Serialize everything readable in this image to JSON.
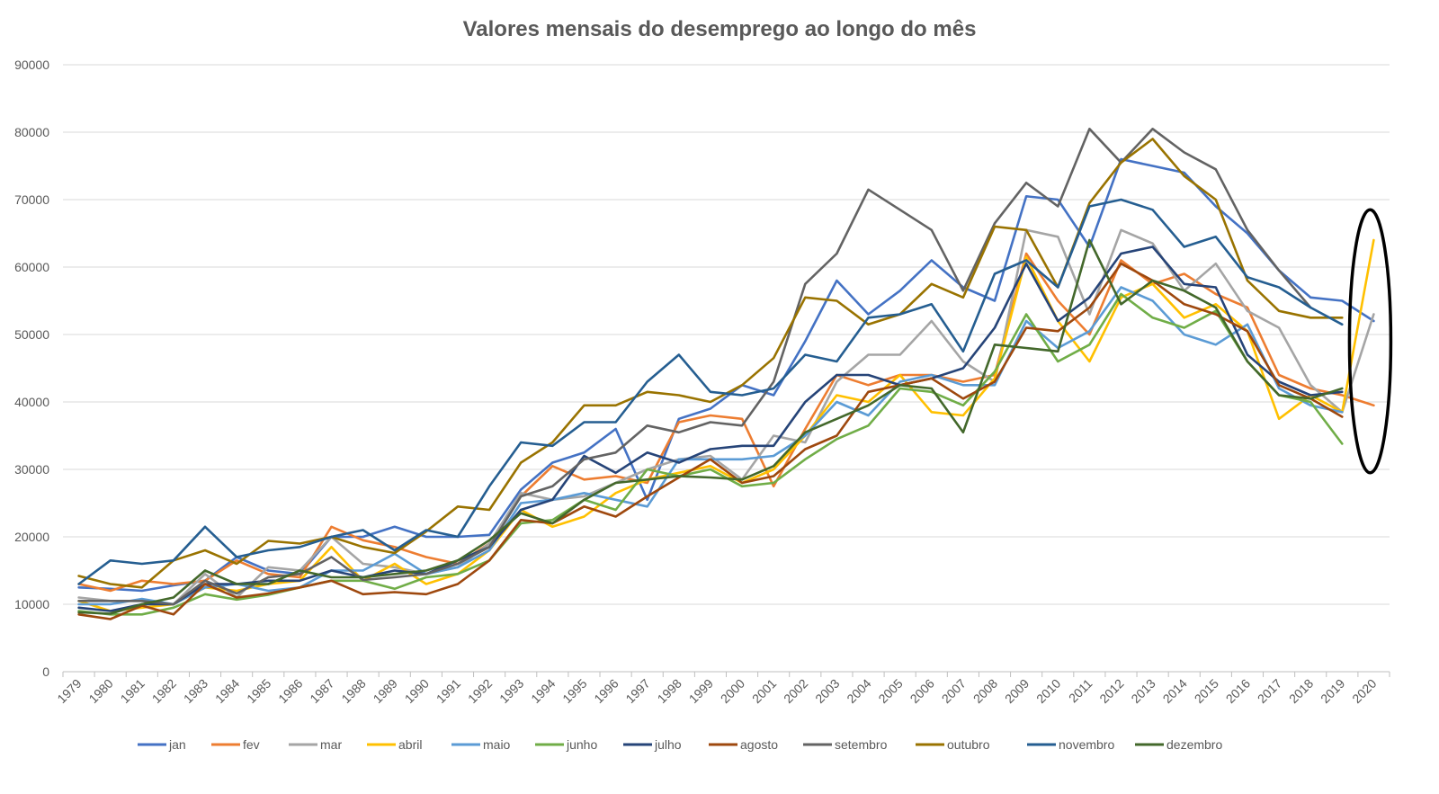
{
  "chart_data": {
    "type": "line",
    "title": "Valores mensais do desemprego ao longo do mês",
    "xlabel": "",
    "ylabel": "",
    "ylim": [
      0,
      90000
    ],
    "yticks": [
      0,
      10000,
      20000,
      30000,
      40000,
      50000,
      60000,
      70000,
      80000,
      90000
    ],
    "grid": "horizontal",
    "legend_position": "bottom",
    "categories": [
      "1979",
      "1980",
      "1981",
      "1982",
      "1983",
      "1984",
      "1985",
      "1986",
      "1987",
      "1988",
      "1989",
      "1990",
      "1991",
      "1992",
      "1993",
      "1994",
      "1995",
      "1996",
      "1997",
      "1998",
      "1999",
      "2000",
      "2001",
      "2002",
      "2003",
      "2004",
      "2005",
      "2006",
      "2007",
      "2008",
      "2009",
      "2010",
      "2011",
      "2012",
      "2013",
      "2014",
      "2015",
      "2016",
      "2017",
      "2018",
      "2019",
      "2020"
    ],
    "series": [
      {
        "name": "jan",
        "color": "#4472C4",
        "values": [
          12500,
          12300,
          12000,
          12800,
          13500,
          17000,
          15000,
          14500,
          20000,
          20000,
          21500,
          20000,
          20000,
          20300,
          27000,
          31000,
          32500,
          36000,
          25500,
          37500,
          39000,
          42500,
          41000,
          49000,
          58000,
          53000,
          56500,
          61000,
          57000,
          55000,
          70500,
          70000,
          63000,
          76000,
          75000,
          74000,
          69000,
          65000,
          59500,
          55500,
          55000,
          52000
        ]
      },
      {
        "name": "fev",
        "color": "#ED7D31",
        "values": [
          13000,
          12000,
          13500,
          13000,
          13500,
          16500,
          14500,
          14000,
          21500,
          19500,
          18500,
          17000,
          16000,
          19000,
          26000,
          30500,
          28500,
          29000,
          28000,
          37000,
          38000,
          37500,
          27500,
          36000,
          44000,
          42500,
          44000,
          44000,
          43000,
          44000,
          62000,
          55000,
          50000,
          61000,
          57500,
          59000,
          56000,
          54000,
          44000,
          42000,
          41000,
          39500
        ]
      },
      {
        "name": "mar",
        "color": "#A5A5A5",
        "values": [
          11000,
          10500,
          10500,
          10000,
          14500,
          11000,
          15500,
          15000,
          20000,
          16000,
          15500,
          14500,
          15500,
          19000,
          26500,
          25500,
          26000,
          28000,
          30000,
          31500,
          32000,
          28500,
          35000,
          34000,
          43000,
          47000,
          47000,
          52000,
          46000,
          43000,
          65500,
          64500,
          53000,
          65500,
          63500,
          56500,
          60500,
          53500,
          51000,
          42500,
          38500,
          53000
        ]
      },
      {
        "name": "abril",
        "color": "#FFC000",
        "values": [
          10500,
          9000,
          9500,
          10000,
          12500,
          12000,
          13000,
          13500,
          18500,
          13500,
          16000,
          13000,
          14500,
          18000,
          24000,
          21500,
          23000,
          26500,
          28500,
          29500,
          30500,
          28000,
          30000,
          35000,
          41000,
          40000,
          44000,
          38500,
          38000,
          43500,
          61500,
          52000,
          46000,
          55500,
          57500,
          52500,
          54500,
          50500,
          37500,
          41000,
          38500,
          64000
        ]
      },
      {
        "name": "maio",
        "color": "#5B9BD5",
        "values": [
          10000,
          10000,
          10800,
          10000,
          12500,
          13000,
          12000,
          12500,
          15000,
          15000,
          17500,
          14500,
          15500,
          18000,
          25000,
          25500,
          26500,
          25500,
          24500,
          31500,
          31500,
          31500,
          32000,
          35000,
          40000,
          38000,
          43000,
          44000,
          42500,
          42500,
          52000,
          48000,
          50500,
          57000,
          55000,
          50000,
          48500,
          51500,
          42000,
          39500,
          38500,
          null
        ]
      },
      {
        "name": "junho",
        "color": "#70AD47",
        "values": [
          9000,
          8500,
          8500,
          9500,
          11500,
          10700,
          11400,
          12500,
          13500,
          13500,
          12300,
          14000,
          14500,
          16500,
          22000,
          22500,
          25500,
          24000,
          30000,
          29000,
          30000,
          27500,
          28000,
          31500,
          34500,
          36500,
          42000,
          41500,
          39500,
          44500,
          53000,
          46000,
          48500,
          56000,
          52500,
          51000,
          53500,
          46000,
          41000,
          40000,
          33800,
          null
        ]
      },
      {
        "name": "julho",
        "color": "#264478",
        "values": [
          9500,
          9000,
          10000,
          10000,
          13000,
          13000,
          13500,
          13500,
          15000,
          14000,
          15000,
          14500,
          16500,
          18500,
          24000,
          25500,
          32000,
          29500,
          32500,
          31000,
          33000,
          33500,
          33500,
          40000,
          44000,
          44000,
          42500,
          43500,
          45000,
          51000,
          60500,
          52000,
          55500,
          62000,
          63000,
          57500,
          57000,
          47000,
          43000,
          41000,
          41500,
          null
        ]
      },
      {
        "name": "agosto",
        "color": "#9E480E",
        "values": [
          8500,
          7800,
          9800,
          8500,
          13000,
          11000,
          11600,
          12500,
          13500,
          11500,
          11800,
          11500,
          13000,
          16500,
          22500,
          22000,
          24500,
          23000,
          26000,
          28800,
          31500,
          28000,
          29000,
          33000,
          35000,
          41500,
          42500,
          43500,
          40500,
          43000,
          51000,
          50500,
          54000,
          60500,
          58000,
          54500,
          53000,
          50500,
          42500,
          40500,
          37800,
          null
        ]
      },
      {
        "name": "setembro",
        "color": "#636363",
        "values": [
          10500,
          10500,
          10500,
          10000,
          13500,
          11600,
          14000,
          14500,
          17000,
          13600,
          14000,
          14500,
          16000,
          18500,
          26000,
          27500,
          31500,
          32500,
          36500,
          35500,
          37000,
          36500,
          43000,
          57500,
          62000,
          71500,
          68500,
          65500,
          56500,
          66500,
          72500,
          69000,
          80500,
          75500,
          80500,
          77000,
          74500,
          65500,
          59500,
          54000,
          null,
          null
        ]
      },
      {
        "name": "outubro",
        "color": "#997300",
        "values": [
          14200,
          13000,
          12500,
          16500,
          18000,
          16000,
          19400,
          19000,
          20000,
          18500,
          17600,
          20800,
          24500,
          24000,
          31000,
          34000,
          39500,
          39500,
          41500,
          41000,
          40000,
          42500,
          46500,
          55500,
          55000,
          51500,
          53000,
          57500,
          55500,
          66000,
          65500,
          57000,
          69500,
          75500,
          79000,
          73500,
          70000,
          58000,
          53500,
          52500,
          52500,
          null
        ]
      },
      {
        "name": "novembro",
        "color": "#255E91",
        "values": [
          13000,
          16500,
          16000,
          16500,
          21500,
          17000,
          18000,
          18500,
          20000,
          21000,
          18000,
          21000,
          20000,
          27500,
          34000,
          33500,
          37000,
          37000,
          43000,
          47000,
          41500,
          41000,
          42000,
          47000,
          46000,
          52500,
          53000,
          54500,
          47500,
          59000,
          61000,
          57000,
          69000,
          70000,
          68500,
          63000,
          64500,
          58500,
          57000,
          54000,
          51500,
          null
        ]
      },
      {
        "name": "dezembro",
        "color": "#43682B",
        "values": [
          8800,
          8600,
          10000,
          11000,
          15000,
          13000,
          13000,
          15000,
          14000,
          14000,
          14500,
          15000,
          16500,
          19500,
          23500,
          22000,
          25500,
          28000,
          28500,
          29000,
          28800,
          28500,
          30500,
          35500,
          37500,
          39500,
          42500,
          42000,
          35500,
          48500,
          48000,
          47500,
          64000,
          54500,
          58000,
          56500,
          54000,
          46000,
          41000,
          40500,
          42000,
          null
        ]
      }
    ]
  },
  "ui": {
    "ellipse_color": "#000000"
  }
}
